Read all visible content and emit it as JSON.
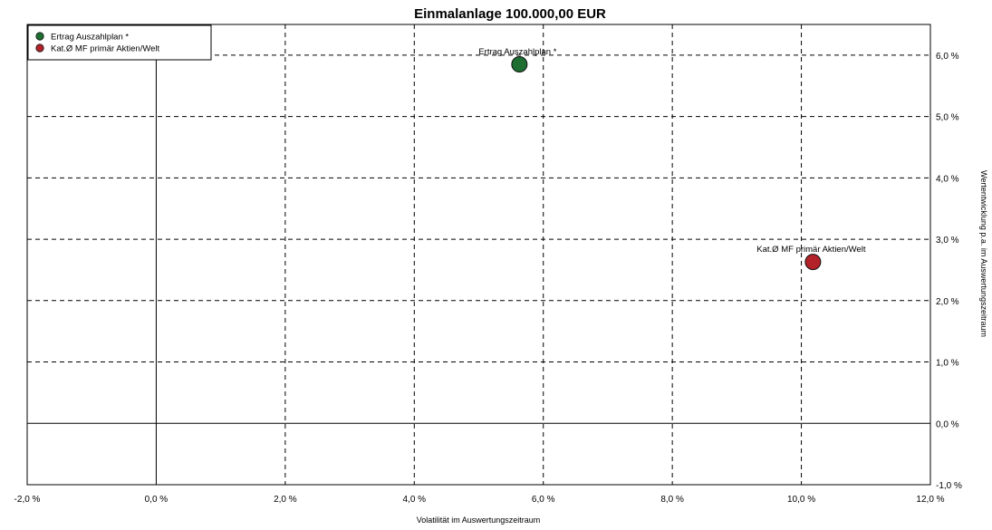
{
  "chart_data": {
    "type": "scatter",
    "title": "Einmalanlage 100.000,00 EUR",
    "xlabel": "Volatilität im Auswertungszeitraum",
    "ylabel": "Wertentwicklung p.a. im Auswertungszeitraum",
    "xlim": [
      -2,
      12
    ],
    "ylim": [
      -1,
      6.5
    ],
    "x_ticks": [
      -2,
      0,
      2,
      4,
      6,
      8,
      10,
      12
    ],
    "x_tick_labels": [
      "-2,0 %",
      "0,0 %",
      "2,0 %",
      "4,0 %",
      "6,0 %",
      "8,0 %",
      "10,0 %",
      "12,0 %"
    ],
    "y_ticks": [
      -1,
      0,
      1,
      2,
      3,
      4,
      5,
      6
    ],
    "y_tick_labels": [
      "-1,0 %",
      "0,0 %",
      "1,0 %",
      "2,0 %",
      "3,0 %",
      "4,0 %",
      "5,0 %",
      "6,0 %"
    ],
    "grid": true,
    "legend_position": "top-left",
    "series": [
      {
        "name": "Ertrag Auszahlplan  *",
        "color": "#1e6e32",
        "points": [
          {
            "x": 5.63,
            "y": 5.85,
            "label": "Ertrag Auszahlplan  *"
          }
        ]
      },
      {
        "name": "Kat.Ø MF primär Aktien/Welt",
        "color": "#b22228",
        "points": [
          {
            "x": 10.18,
            "y": 2.63,
            "label": "Kat.Ø MF primär Aktien/Welt"
          }
        ]
      }
    ]
  }
}
